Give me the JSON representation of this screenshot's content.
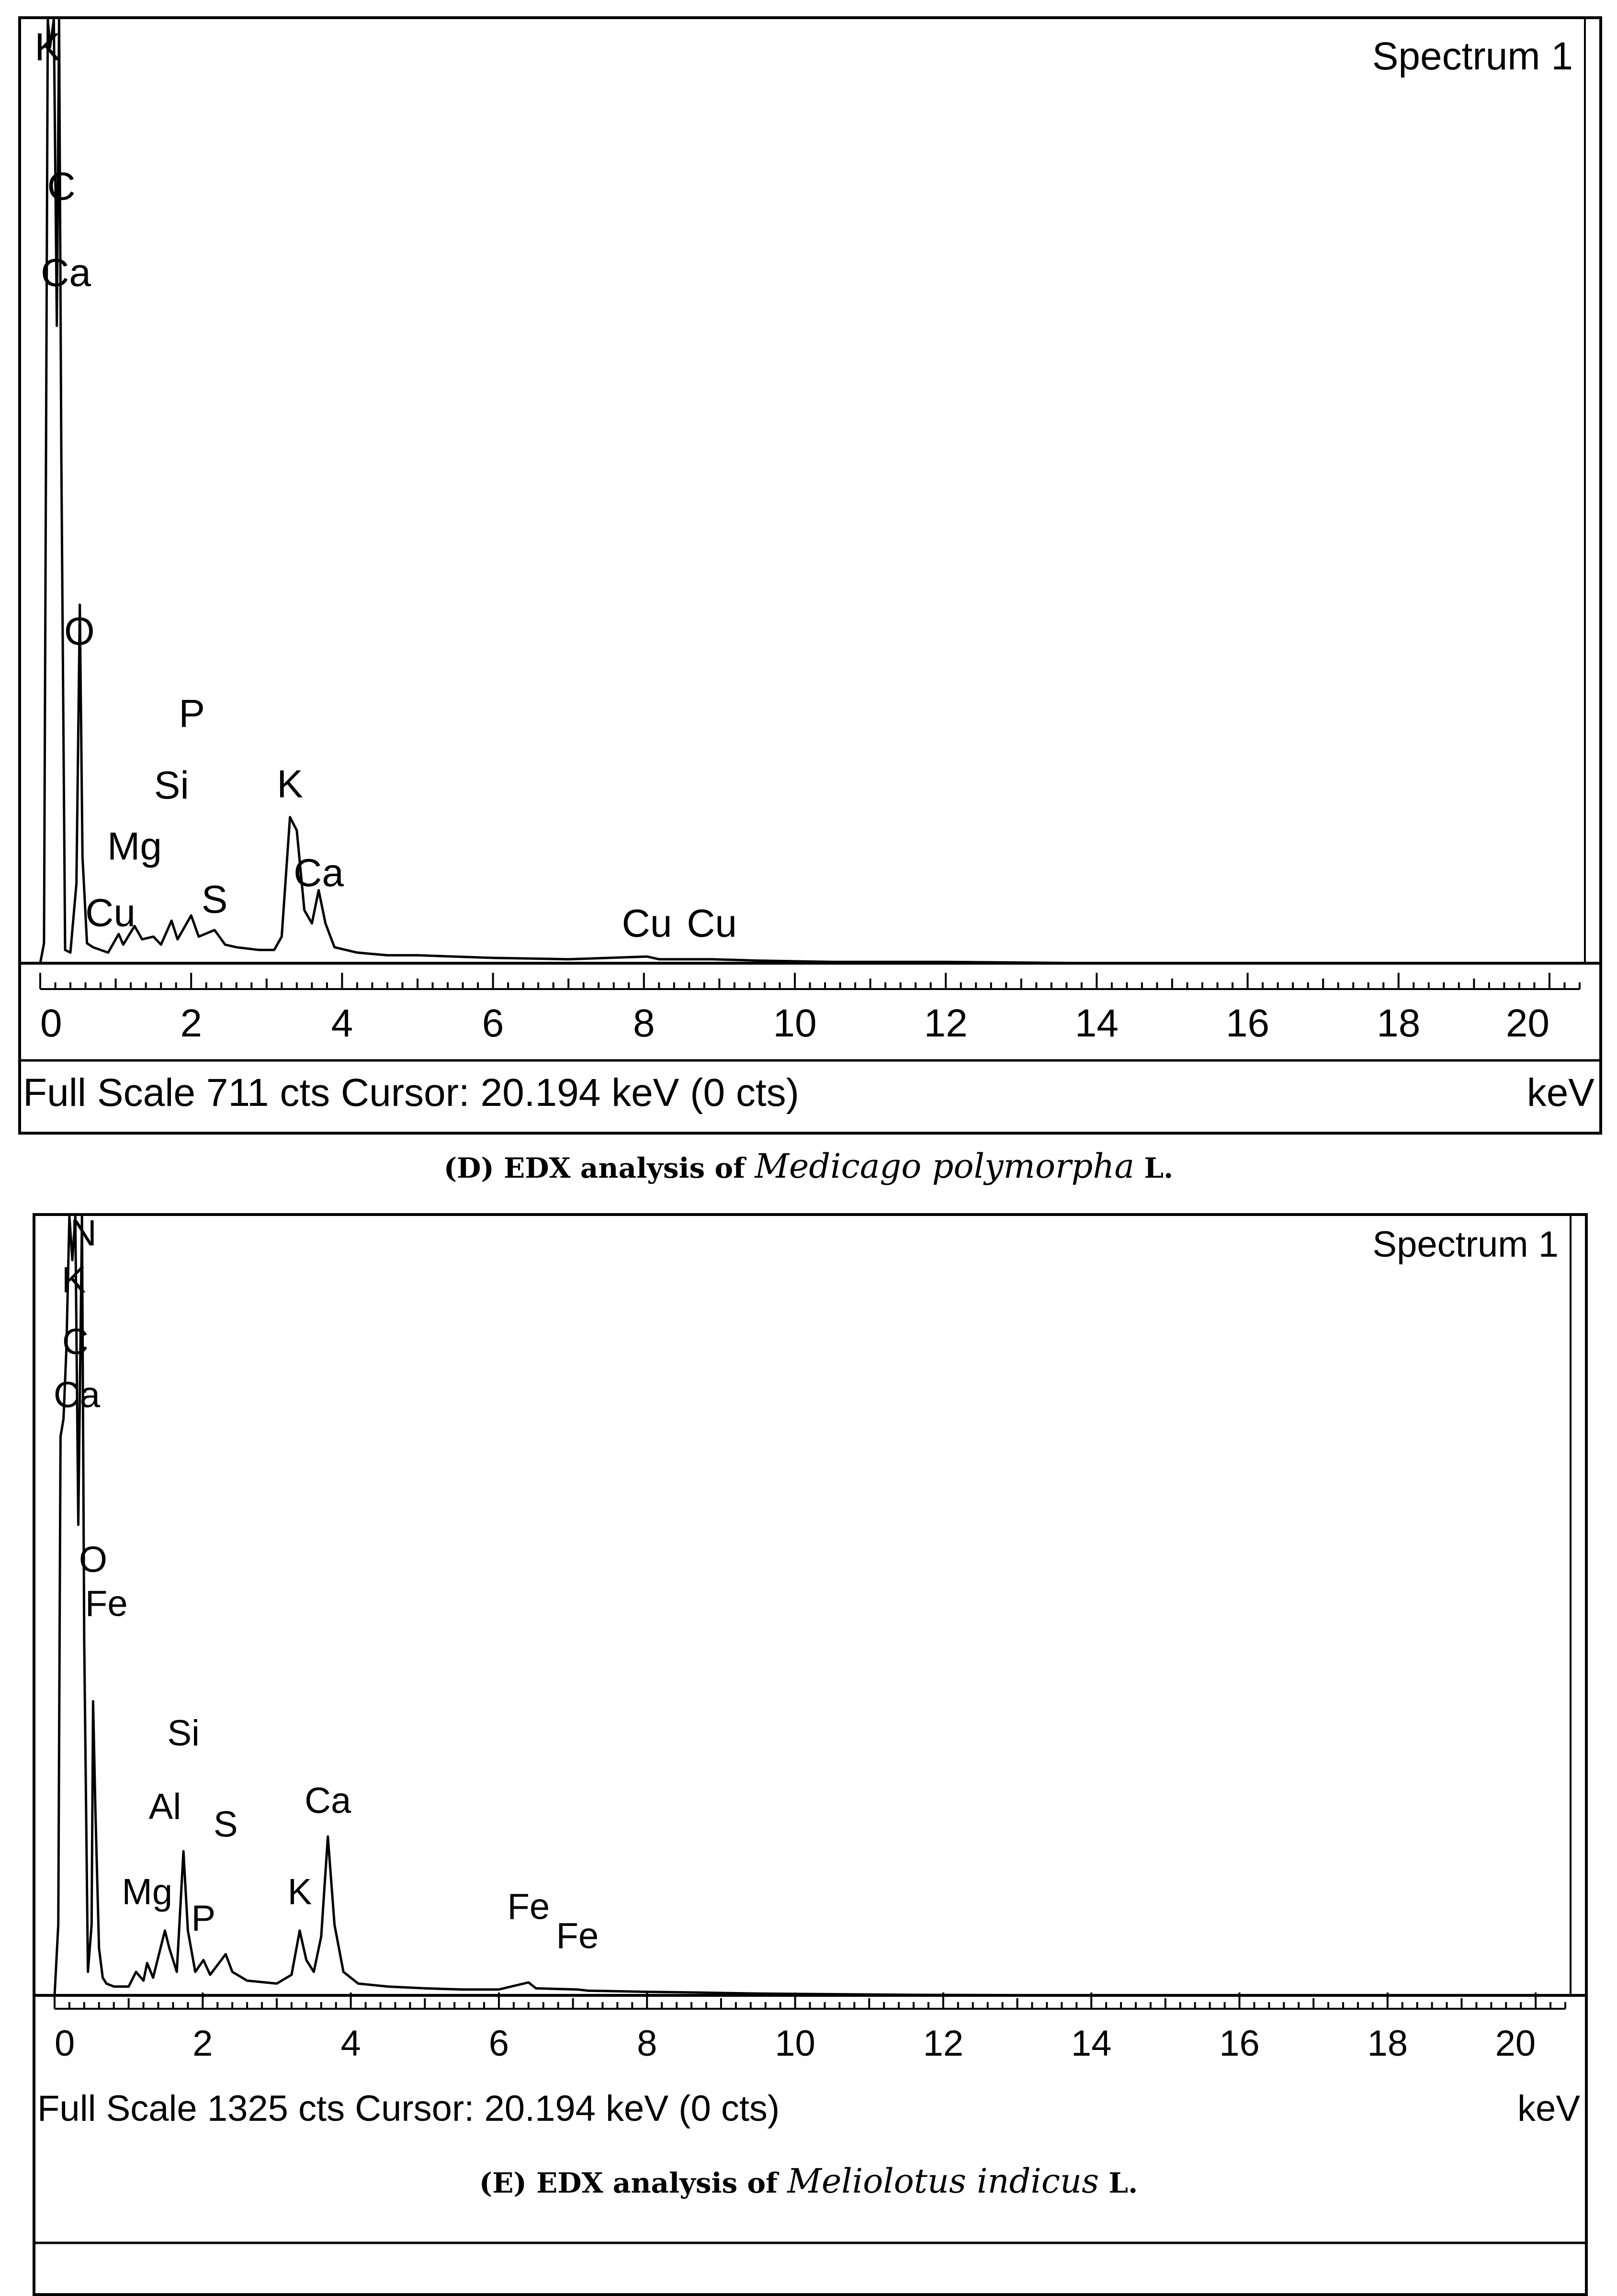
{
  "chart_data": [
    {
      "type": "line",
      "panel": "D",
      "caption": {
        "prefix": "(D) EDX analysis of ",
        "species": "Medicago polymorpha",
        "suffix": " L."
      },
      "spectrum_label": "Spectrum 1",
      "xlabel_unit": "keV",
      "xlim": [
        0,
        20.4
      ],
      "ylim": [
        0,
        711
      ],
      "x_ticks": [
        0,
        2,
        4,
        6,
        8,
        10,
        12,
        14,
        16,
        18,
        20
      ],
      "x_tick_labels": [
        "0",
        "2",
        "4",
        "6",
        "8",
        "10",
        "12",
        "14",
        "16",
        "18",
        "20"
      ],
      "status_text": "Full Scale 711 cts  Cursor: 20.194 keV (0 cts)",
      "series": [
        {
          "points": [
            [
              0,
              0
            ],
            [
              0.05,
              15
            ],
            [
              0.1,
              711
            ],
            [
              0.13,
              690
            ],
            [
              0.18,
              711
            ],
            [
              0.22,
              480
            ],
            [
              0.25,
              711
            ],
            [
              0.28,
              380
            ],
            [
              0.33,
              10
            ],
            [
              0.4,
              8
            ],
            [
              0.48,
              60
            ],
            [
              0.525,
              270
            ],
            [
              0.56,
              80
            ],
            [
              0.62,
              15
            ],
            [
              0.7,
              12
            ],
            [
              0.8,
              10
            ],
            [
              0.9,
              8
            ],
            [
              1.04,
              22
            ],
            [
              1.1,
              14
            ],
            [
              1.25,
              28
            ],
            [
              1.35,
              18
            ],
            [
              1.5,
              20
            ],
            [
              1.6,
              14
            ],
            [
              1.74,
              32
            ],
            [
              1.82,
              18
            ],
            [
              2.0,
              36
            ],
            [
              2.1,
              20
            ],
            [
              2.31,
              25
            ],
            [
              2.45,
              14
            ],
            [
              2.6,
              12
            ],
            [
              2.9,
              10
            ],
            [
              3.1,
              10
            ],
            [
              3.2,
              20
            ],
            [
              3.31,
              110
            ],
            [
              3.4,
              100
            ],
            [
              3.5,
              40
            ],
            [
              3.6,
              30
            ],
            [
              3.69,
              55
            ],
            [
              3.78,
              30
            ],
            [
              3.9,
              12
            ],
            [
              4.2,
              8
            ],
            [
              4.6,
              6
            ],
            [
              5.0,
              6
            ],
            [
              6.0,
              4
            ],
            [
              7.0,
              3
            ],
            [
              8.04,
              5
            ],
            [
              8.2,
              3
            ],
            [
              8.9,
              3
            ],
            [
              9.5,
              2
            ],
            [
              10.5,
              1
            ],
            [
              12,
              1
            ],
            [
              14,
              0
            ],
            [
              20.4,
              0
            ]
          ]
        }
      ],
      "annotations": [
        {
          "text": "K",
          "x": 0.1,
          "y": 680
        },
        {
          "text": "C",
          "x": 0.28,
          "y": 575
        },
        {
          "text": "Ca",
          "x": 0.34,
          "y": 510
        },
        {
          "text": "O",
          "x": 0.52,
          "y": 240
        },
        {
          "text": "P",
          "x": 2.01,
          "y": 178
        },
        {
          "text": "Si",
          "x": 1.74,
          "y": 124
        },
        {
          "text": "Mg",
          "x": 1.25,
          "y": 78
        },
        {
          "text": "Cu",
          "x": 0.93,
          "y": 28
        },
        {
          "text": "S",
          "x": 2.31,
          "y": 38
        },
        {
          "text": "K",
          "x": 3.31,
          "y": 125
        },
        {
          "text": "Ca",
          "x": 3.69,
          "y": 58
        },
        {
          "text": "Cu",
          "x": 8.04,
          "y": 20
        },
        {
          "text": "Cu",
          "x": 8.9,
          "y": 20
        }
      ]
    },
    {
      "type": "line",
      "panel": "E",
      "caption": {
        "prefix": "(E) EDX analysis of ",
        "species": "Meliolotus indicus",
        "suffix": " L."
      },
      "spectrum_label": "Spectrum 1",
      "xlabel_unit": "keV",
      "xlim": [
        0,
        20.4
      ],
      "ylim": [
        0,
        1325
      ],
      "x_ticks": [
        0,
        2,
        4,
        6,
        8,
        10,
        12,
        14,
        16,
        18,
        20
      ],
      "x_tick_labels": [
        "0",
        "2",
        "4",
        "6",
        "8",
        "10",
        "12",
        "14",
        "16",
        "18",
        "20"
      ],
      "status_text": "Full Scale 1325 cts  Cursor: 20.194 keV (0 cts)",
      "series": [
        {
          "points": [
            [
              0,
              0
            ],
            [
              0.05,
              120
            ],
            [
              0.08,
              950
            ],
            [
              0.12,
              980
            ],
            [
              0.16,
              1100
            ],
            [
              0.2,
              1325
            ],
            [
              0.24,
              1250
            ],
            [
              0.28,
              1325
            ],
            [
              0.32,
              800
            ],
            [
              0.37,
              1325
            ],
            [
              0.4,
              600
            ],
            [
              0.45,
              40
            ],
            [
              0.5,
              120
            ],
            [
              0.52,
              500
            ],
            [
              0.55,
              320
            ],
            [
              0.6,
              80
            ],
            [
              0.65,
              30
            ],
            [
              0.7,
              20
            ],
            [
              0.8,
              15
            ],
            [
              0.9,
              15
            ],
            [
              1.0,
              15
            ],
            [
              1.1,
              40
            ],
            [
              1.2,
              25
            ],
            [
              1.25,
              55
            ],
            [
              1.33,
              30
            ],
            [
              1.49,
              110
            ],
            [
              1.55,
              80
            ],
            [
              1.65,
              40
            ],
            [
              1.74,
              245
            ],
            [
              1.8,
              110
            ],
            [
              1.9,
              40
            ],
            [
              2.01,
              60
            ],
            [
              2.1,
              35
            ],
            [
              2.31,
              70
            ],
            [
              2.4,
              40
            ],
            [
              2.6,
              25
            ],
            [
              3.0,
              20
            ],
            [
              3.2,
              35
            ],
            [
              3.31,
              110
            ],
            [
              3.4,
              60
            ],
            [
              3.5,
              40
            ],
            [
              3.6,
              100
            ],
            [
              3.69,
              270
            ],
            [
              3.78,
              120
            ],
            [
              3.9,
              40
            ],
            [
              4.1,
              20
            ],
            [
              4.5,
              15
            ],
            [
              5.0,
              12
            ],
            [
              5.5,
              10
            ],
            [
              6.0,
              10
            ],
            [
              6.4,
              22
            ],
            [
              6.5,
              12
            ],
            [
              7.06,
              10
            ],
            [
              7.2,
              8
            ],
            [
              8.0,
              6
            ],
            [
              8.6,
              5
            ],
            [
              9.5,
              3
            ],
            [
              10.5,
              2
            ],
            [
              11.5,
              1
            ],
            [
              14,
              0
            ],
            [
              20.4,
              0
            ]
          ]
        }
      ],
      "annotations": [
        {
          "text": "N",
          "x": 0.39,
          "y": 1275
        },
        {
          "text": "K",
          "x": 0.26,
          "y": 1195
        },
        {
          "text": "C",
          "x": 0.28,
          "y": 1090
        },
        {
          "text": "Ca",
          "x": 0.3,
          "y": 1000
        },
        {
          "text": "O",
          "x": 0.52,
          "y": 720
        },
        {
          "text": "Fe",
          "x": 0.7,
          "y": 645
        },
        {
          "text": "Si",
          "x": 1.74,
          "y": 425
        },
        {
          "text": "Al",
          "x": 1.49,
          "y": 300
        },
        {
          "text": "S",
          "x": 2.31,
          "y": 270
        },
        {
          "text": "Ca",
          "x": 3.69,
          "y": 310
        },
        {
          "text": "Mg",
          "x": 1.25,
          "y": 155
        },
        {
          "text": "P",
          "x": 2.01,
          "y": 110
        },
        {
          "text": "K",
          "x": 3.31,
          "y": 155
        },
        {
          "text": "Fe",
          "x": 6.4,
          "y": 130
        },
        {
          "text": "Fe",
          "x": 7.06,
          "y": 80
        }
      ]
    }
  ]
}
